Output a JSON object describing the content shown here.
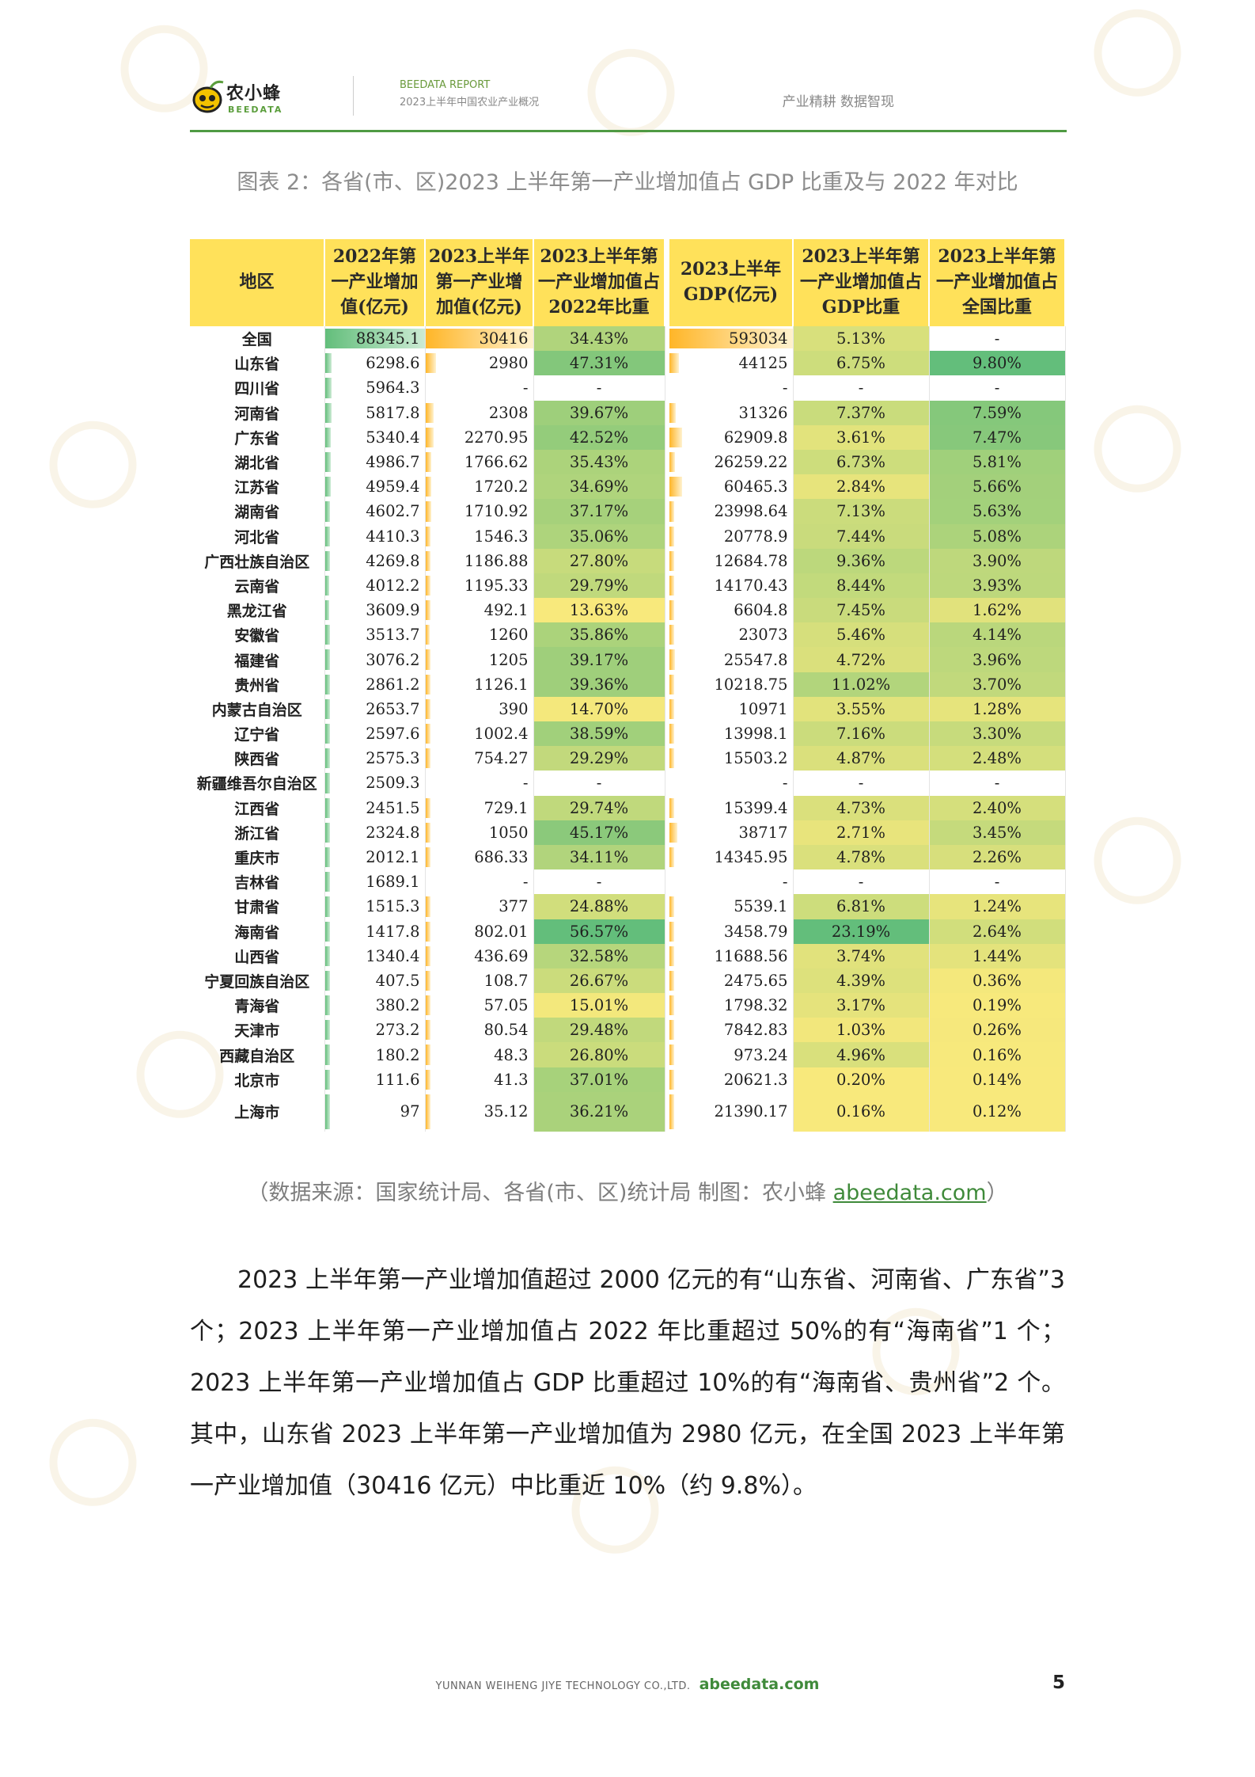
{
  "header": {
    "logo_cn": "农小蜂",
    "logo_en": "BEEDATA",
    "report_label": "BEEDATA REPORT",
    "report_subtitle": "2023上半年中国农业产业概况",
    "slogan": "产业精耕  数据智现"
  },
  "caption": "图表 2：各省(市、区)2023 上半年第一产业增加值占 GDP 比重及与 2022 年对比",
  "table": {
    "headers": [
      "地区",
      "2022年第一产业增加值(亿元)",
      "2023上半年第一产业增加值(亿元)",
      "2023上半年第一产业增加值占2022年比重",
      "2023上半年GDP(亿元)",
      "2023上半年第一产业增加值占GDP比重",
      "2023上半年第一产业增加值占全国比重"
    ],
    "rows": [
      [
        "全国",
        "88345.1",
        "30416",
        "34.43%",
        "593034",
        "5.13%",
        "-"
      ],
      [
        "山东省",
        "6298.6",
        "2980",
        "47.31%",
        "44125",
        "6.75%",
        "9.80%"
      ],
      [
        "四川省",
        "5964.3",
        "-",
        "-",
        "-",
        "-",
        "-"
      ],
      [
        "河南省",
        "5817.8",
        "2308",
        "39.67%",
        "31326",
        "7.37%",
        "7.59%"
      ],
      [
        "广东省",
        "5340.4",
        "2270.95",
        "42.52%",
        "62909.8",
        "3.61%",
        "7.47%"
      ],
      [
        "湖北省",
        "4986.7",
        "1766.62",
        "35.43%",
        "26259.22",
        "6.73%",
        "5.81%"
      ],
      [
        "江苏省",
        "4959.4",
        "1720.2",
        "34.69%",
        "60465.3",
        "2.84%",
        "5.66%"
      ],
      [
        "湖南省",
        "4602.7",
        "1710.92",
        "37.17%",
        "23998.64",
        "7.13%",
        "5.63%"
      ],
      [
        "河北省",
        "4410.3",
        "1546.3",
        "35.06%",
        "20778.9",
        "7.44%",
        "5.08%"
      ],
      [
        "广西壮族自治区",
        "4269.8",
        "1186.88",
        "27.80%",
        "12684.78",
        "9.36%",
        "3.90%"
      ],
      [
        "云南省",
        "4012.2",
        "1195.33",
        "29.79%",
        "14170.43",
        "8.44%",
        "3.93%"
      ],
      [
        "黑龙江省",
        "3609.9",
        "492.1",
        "13.63%",
        "6604.8",
        "7.45%",
        "1.62%"
      ],
      [
        "安徽省",
        "3513.7",
        "1260",
        "35.86%",
        "23073",
        "5.46%",
        "4.14%"
      ],
      [
        "福建省",
        "3076.2",
        "1205",
        "39.17%",
        "25547.8",
        "4.72%",
        "3.96%"
      ],
      [
        "贵州省",
        "2861.2",
        "1126.1",
        "39.36%",
        "10218.75",
        "11.02%",
        "3.70%"
      ],
      [
        "内蒙古自治区",
        "2653.7",
        "390",
        "14.70%",
        "10971",
        "3.55%",
        "1.28%"
      ],
      [
        "辽宁省",
        "2597.6",
        "1002.4",
        "38.59%",
        "13998.1",
        "7.16%",
        "3.30%"
      ],
      [
        "陕西省",
        "2575.3",
        "754.27",
        "29.29%",
        "15503.2",
        "4.87%",
        "2.48%"
      ],
      [
        "新疆维吾尔自治区",
        "2509.3",
        "-",
        "-",
        "-",
        "-",
        "-"
      ],
      [
        "江西省",
        "2451.5",
        "729.1",
        "29.74%",
        "15399.4",
        "4.73%",
        "2.40%"
      ],
      [
        "浙江省",
        "2324.8",
        "1050",
        "45.17%",
        "38717",
        "2.71%",
        "3.45%"
      ],
      [
        "重庆市",
        "2012.1",
        "686.33",
        "34.11%",
        "14345.95",
        "4.78%",
        "2.26%"
      ],
      [
        "吉林省",
        "1689.1",
        "-",
        "-",
        "-",
        "-",
        "-"
      ],
      [
        "甘肃省",
        "1515.3",
        "377",
        "24.88%",
        "5539.1",
        "6.81%",
        "1.24%"
      ],
      [
        "海南省",
        "1417.8",
        "802.01",
        "56.57%",
        "3458.79",
        "23.19%",
        "2.64%"
      ],
      [
        "山西省",
        "1340.4",
        "436.69",
        "32.58%",
        "11688.56",
        "3.74%",
        "1.44%"
      ],
      [
        "宁夏回族自治区",
        "407.5",
        "108.7",
        "26.67%",
        "2475.65",
        "4.39%",
        "0.36%"
      ],
      [
        "青海省",
        "380.2",
        "57.05",
        "15.01%",
        "1798.32",
        "3.17%",
        "0.19%"
      ],
      [
        "天津市",
        "273.2",
        "80.54",
        "29.48%",
        "7842.83",
        "1.03%",
        "0.26%"
      ],
      [
        "西藏自治区",
        "180.2",
        "48.3",
        "26.80%",
        "973.24",
        "4.96%",
        "0.16%"
      ],
      [
        "北京市",
        "111.6",
        "41.3",
        "37.01%",
        "20621.3",
        "0.20%",
        "0.14%"
      ],
      [
        "上海市",
        "97",
        "35.12",
        "36.21%",
        "21390.17",
        "0.16%",
        "0.12%"
      ]
    ]
  },
  "colors": {
    "header_bg": "#ffe15a",
    "brand_green": "#4f9a43",
    "bar_green": "#63be7b",
    "bar_gold": "#ffb628",
    "scale_low": "#f8e97c",
    "scale_high": "#63be7b"
  },
  "source": {
    "prefix": "（数据来源：国家统计局、各省(市、区)统计局    制图：农小蜂 ",
    "link": "abeedata.com",
    "suffix": "）"
  },
  "paragraph": "2023 上半年第一产业增加值超过 2000 亿元的有“山东省、河南省、广东省”3 个；2023 上半年第一产业增加值占 2022 年比重超过 50%的有“海南省”1 个；2023 上半年第一产业增加值占 GDP 比重超过 10%的有“海南省、贵州省”2 个。其中，山东省 2023 上半年第一产业增加值为 2980 亿元，在全国 2023 上半年第一产业增加值（30416 亿元）中比重近 10%（约 9.8%）。",
  "footer": {
    "company": "YUNNAN WEIHENG JIYE TECHNOLOGY CO.,LTD.",
    "site": "abeedata.com",
    "page_number": "5"
  }
}
